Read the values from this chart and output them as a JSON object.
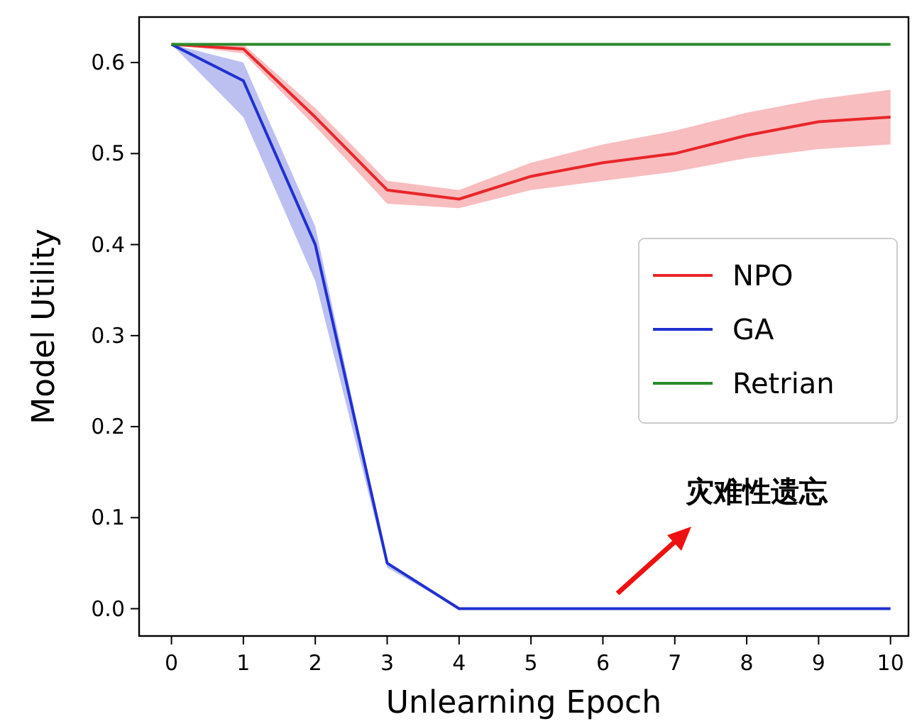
{
  "chart_data": {
    "type": "line",
    "xlabel": "Unlearning Epoch",
    "ylabel": "Model Utility",
    "x": [
      0,
      1,
      2,
      3,
      4,
      5,
      6,
      7,
      8,
      9,
      10
    ],
    "xlim": [
      -0.45,
      10.25
    ],
    "xticks": [
      0,
      1,
      2,
      3,
      4,
      5,
      6,
      7,
      8,
      9,
      10
    ],
    "ylim": [
      -0.03,
      0.65
    ],
    "yticks": [
      {
        "value": 0,
        "label": "0.0"
      },
      0.1,
      0.2,
      0.3,
      0.4,
      0.5,
      0.6
    ],
    "series": [
      {
        "name": "NPO",
        "color": "#e8262a",
        "values": [
          0.62,
          0.615,
          0.54,
          0.46,
          0.45,
          0.475,
          0.49,
          0.5,
          0.52,
          0.535,
          0.54
        ],
        "lower": [
          0.62,
          0.61,
          0.53,
          0.445,
          0.44,
          0.46,
          0.47,
          0.48,
          0.495,
          0.505,
          0.51
        ],
        "upper": [
          0.62,
          0.62,
          0.55,
          0.47,
          0.46,
          0.49,
          0.51,
          0.525,
          0.545,
          0.56,
          0.57
        ]
      },
      {
        "name": "GA",
        "color": "#2030d0",
        "values": [
          0.62,
          0.58,
          0.4,
          0.05,
          0,
          0,
          0,
          0,
          0,
          0,
          0
        ],
        "lower": [
          0.62,
          0.54,
          0.36,
          0.045,
          0,
          0,
          0,
          0,
          0,
          0,
          0
        ],
        "upper": [
          0.62,
          0.6,
          0.42,
          0.05,
          0,
          0,
          0,
          0,
          0,
          0,
          0
        ]
      },
      {
        "name": "Retrian",
        "color": "#2a8a2a",
        "values": [
          0.62,
          0.62,
          0.62,
          0.62,
          0.62,
          0.62,
          0.62,
          0.62,
          0.62,
          0.62,
          0.62
        ]
      }
    ],
    "legend": "center right",
    "grid": false,
    "annotations": [
      "灾难性遗忘"
    ]
  }
}
